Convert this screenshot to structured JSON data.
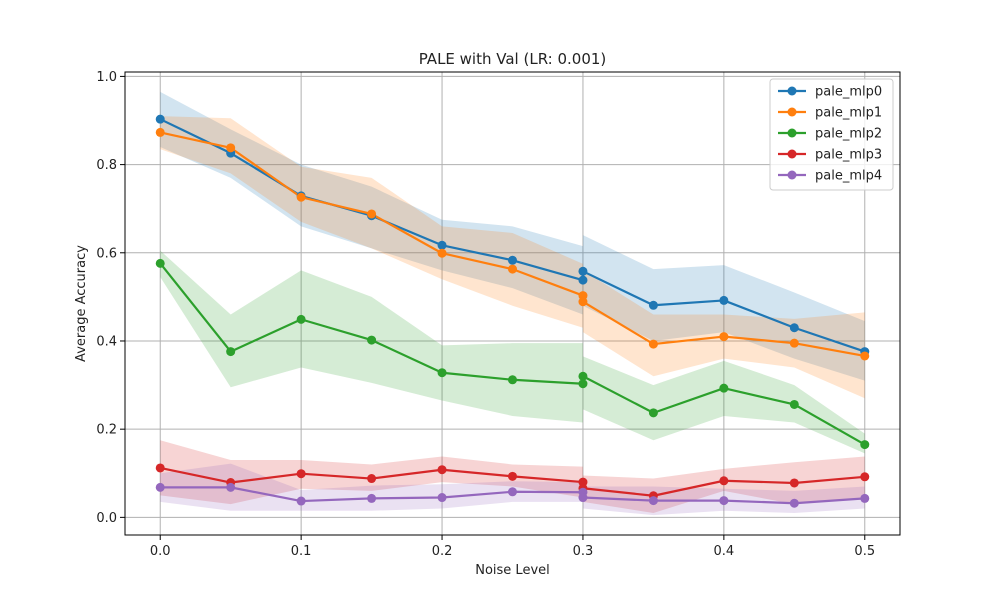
{
  "chart_data": {
    "type": "line",
    "title": "PALE with Val (LR: 0.001)",
    "xlabel": "Noise Level",
    "ylabel": "Average Accuracy",
    "xlim": [
      -0.025,
      0.525
    ],
    "ylim": [
      -0.04,
      1.01
    ],
    "x_ticks": [
      0.0,
      0.1,
      0.2,
      0.3,
      0.4,
      0.5
    ],
    "x_tick_labels": [
      "0.0",
      "0.1",
      "0.2",
      "0.3",
      "0.4",
      "0.5"
    ],
    "y_ticks": [
      0.0,
      0.2,
      0.4,
      0.6,
      0.8,
      1.0
    ],
    "y_tick_labels": [
      "0.0",
      "0.2",
      "0.4",
      "0.6",
      "0.8",
      "1.0"
    ],
    "grid": true,
    "legend_position": "top-right",
    "series": [
      {
        "name": "pale_mlp0",
        "color": "#1f77b4",
        "x": [
          0.0,
          0.05,
          0.1,
          0.15,
          0.2,
          0.25,
          0.3,
          0.3,
          0.35,
          0.4,
          0.45,
          0.5
        ],
        "y": [
          0.903,
          0.826,
          0.729,
          0.684,
          0.617,
          0.583,
          0.538,
          0.558,
          0.481,
          0.492,
          0.43,
          0.376
        ],
        "y_low": [
          0.84,
          0.77,
          0.66,
          0.61,
          0.56,
          0.52,
          0.46,
          0.48,
          0.4,
          0.42,
          0.36,
          0.31
        ],
        "y_high": [
          0.965,
          0.88,
          0.8,
          0.75,
          0.675,
          0.66,
          0.615,
          0.64,
          0.563,
          0.572,
          0.51,
          0.445
        ]
      },
      {
        "name": "pale_mlp1",
        "color": "#ff7f0e",
        "x": [
          0.0,
          0.05,
          0.1,
          0.15,
          0.2,
          0.25,
          0.3,
          0.3,
          0.35,
          0.4,
          0.45,
          0.5
        ],
        "y": [
          0.873,
          0.838,
          0.726,
          0.688,
          0.599,
          0.563,
          0.503,
          0.489,
          0.393,
          0.41,
          0.395,
          0.366
        ],
        "y_low": [
          0.835,
          0.78,
          0.67,
          0.61,
          0.54,
          0.48,
          0.43,
          0.42,
          0.32,
          0.36,
          0.34,
          0.27
        ],
        "y_high": [
          0.91,
          0.905,
          0.795,
          0.77,
          0.66,
          0.645,
          0.575,
          0.56,
          0.46,
          0.46,
          0.45,
          0.465
        ]
      },
      {
        "name": "pale_mlp2",
        "color": "#2ca02c",
        "x": [
          0.0,
          0.05,
          0.1,
          0.15,
          0.2,
          0.25,
          0.3,
          0.3,
          0.35,
          0.4,
          0.45,
          0.5
        ],
        "y": [
          0.576,
          0.376,
          0.449,
          0.402,
          0.328,
          0.312,
          0.303,
          0.32,
          0.237,
          0.293,
          0.256,
          0.165
        ],
        "y_low": [
          0.545,
          0.295,
          0.34,
          0.305,
          0.265,
          0.23,
          0.215,
          0.245,
          0.175,
          0.23,
          0.215,
          0.145
        ],
        "y_high": [
          0.605,
          0.46,
          0.56,
          0.5,
          0.39,
          0.395,
          0.395,
          0.365,
          0.3,
          0.355,
          0.3,
          0.19
        ]
      },
      {
        "name": "pale_mlp3",
        "color": "#d62728",
        "x": [
          0.0,
          0.05,
          0.1,
          0.15,
          0.2,
          0.25,
          0.3,
          0.3,
          0.35,
          0.4,
          0.45,
          0.5
        ],
        "y": [
          0.112,
          0.079,
          0.099,
          0.088,
          0.108,
          0.093,
          0.08,
          0.066,
          0.049,
          0.083,
          0.078,
          0.092
        ],
        "y_low": [
          0.05,
          0.03,
          0.065,
          0.06,
          0.08,
          0.07,
          0.045,
          0.035,
          0.01,
          0.06,
          0.03,
          0.045
        ],
        "y_high": [
          0.175,
          0.13,
          0.13,
          0.12,
          0.138,
          0.12,
          0.115,
          0.095,
          0.088,
          0.11,
          0.125,
          0.138
        ]
      },
      {
        "name": "pale_mlp4",
        "color": "#9467bd",
        "x": [
          0.0,
          0.05,
          0.1,
          0.15,
          0.2,
          0.25,
          0.3,
          0.3,
          0.35,
          0.4,
          0.45,
          0.5
        ],
        "y": [
          0.068,
          0.068,
          0.037,
          0.043,
          0.045,
          0.058,
          0.057,
          0.045,
          0.038,
          0.038,
          0.032,
          0.043
        ],
        "y_low": [
          0.035,
          0.015,
          0.015,
          0.015,
          0.02,
          0.035,
          0.035,
          0.02,
          0.005,
          0.015,
          0.01,
          0.02
        ],
        "y_high": [
          0.1,
          0.122,
          0.062,
          0.072,
          0.075,
          0.082,
          0.08,
          0.07,
          0.07,
          0.065,
          0.06,
          0.07
        ]
      }
    ]
  }
}
